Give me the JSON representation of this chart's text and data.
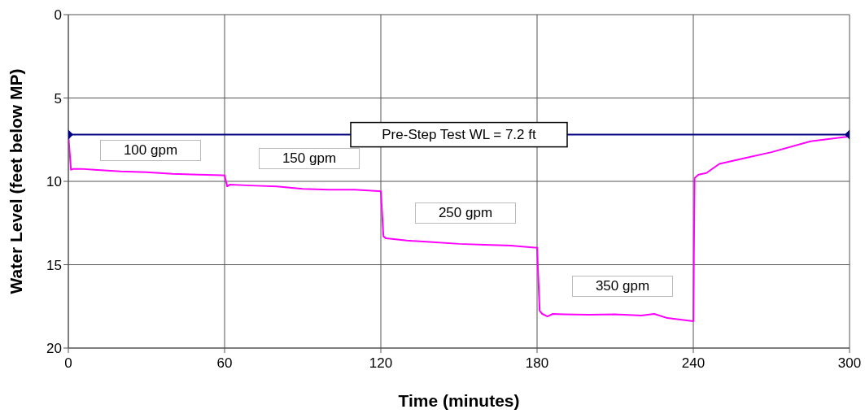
{
  "chart_data": {
    "type": "line",
    "xlabel": "Time (minutes)",
    "ylabel": "Water Level (feet below MP)",
    "xlim": [
      0,
      300
    ],
    "xticks": [
      0,
      60,
      120,
      180,
      240,
      300
    ],
    "ylim": [
      20,
      0
    ],
    "yticks": [
      0,
      5,
      10,
      15,
      20
    ],
    "grid": true,
    "line_style": "solid",
    "series": [
      {
        "color": "#ff00ff",
        "marker": "none",
        "x": [
          0,
          1,
          2,
          5,
          10,
          20,
          30,
          40,
          50,
          59,
          60,
          61,
          62,
          70,
          80,
          90,
          100,
          110,
          119,
          120,
          121,
          122,
          130,
          140,
          150,
          160,
          170,
          179,
          180,
          181,
          182,
          184,
          186,
          190,
          200,
          210,
          220,
          225,
          230,
          240,
          240.5,
          242,
          245,
          250,
          260,
          270,
          285,
          300
        ],
        "values": [
          7.2,
          9.3,
          9.25,
          9.25,
          9.3,
          9.4,
          9.45,
          9.55,
          9.6,
          9.63,
          9.65,
          10.3,
          10.2,
          10.25,
          10.3,
          10.45,
          10.5,
          10.5,
          10.58,
          10.6,
          13.3,
          13.42,
          13.55,
          13.65,
          13.75,
          13.8,
          13.85,
          13.98,
          13.98,
          17.77,
          17.95,
          18.1,
          17.95,
          17.97,
          18.0,
          17.98,
          18.05,
          17.95,
          18.2,
          18.39,
          9.8,
          9.6,
          9.5,
          8.95,
          8.6,
          8.25,
          7.6,
          7.3
        ]
      },
      {
        "color": "#000080",
        "marker": "diamond",
        "x": [
          0,
          300
        ],
        "values": [
          7.2,
          7.2
        ]
      }
    ],
    "annotations": [
      {
        "text": "Pre-Step Test WL = 7.2 ft",
        "x": 150,
        "y": 7.2
      },
      "100 gpm",
      "150 gpm",
      "250 gpm",
      "350 gpm"
    ]
  }
}
